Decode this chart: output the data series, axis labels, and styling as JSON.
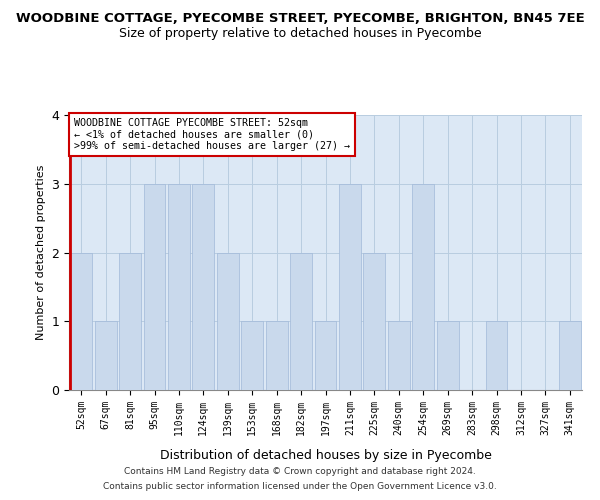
{
  "title": "WOODBINE COTTAGE, PYECOMBE STREET, PYECOMBE, BRIGHTON, BN45 7EE",
  "subtitle": "Size of property relative to detached houses in Pyecombe",
  "xlabel": "Distribution of detached houses by size in Pyecombe",
  "ylabel": "Number of detached properties",
  "categories": [
    "52sqm",
    "67sqm",
    "81sqm",
    "95sqm",
    "110sqm",
    "124sqm",
    "139sqm",
    "153sqm",
    "168sqm",
    "182sqm",
    "197sqm",
    "211sqm",
    "225sqm",
    "240sqm",
    "254sqm",
    "269sqm",
    "283sqm",
    "298sqm",
    "312sqm",
    "327sqm",
    "341sqm"
  ],
  "values": [
    2,
    1,
    2,
    3,
    3,
    3,
    2,
    1,
    1,
    2,
    1,
    3,
    2,
    1,
    3,
    1,
    0,
    1,
    0,
    0,
    1
  ],
  "bar_color": "#c9d9ec",
  "bar_edge_color": "#a0b8d8",
  "annotation_line1": "WOODBINE COTTAGE PYECOMBE STREET: 52sqm",
  "annotation_line2": "← <1% of detached houses are smaller (0)",
  "annotation_line3": ">99% of semi-detached houses are larger (27) →",
  "annotation_box_color": "#ffffff",
  "annotation_box_edge": "#cc0000",
  "red_line_color": "#cc0000",
  "ylim": [
    0,
    4
  ],
  "yticks": [
    0,
    1,
    2,
    3,
    4
  ],
  "footer1": "Contains HM Land Registry data © Crown copyright and database right 2024.",
  "footer2": "Contains public sector information licensed under the Open Government Licence v3.0.",
  "bg_color": "#ffffff",
  "plot_bg_color": "#dce8f5",
  "grid_color": "#b8cde0"
}
